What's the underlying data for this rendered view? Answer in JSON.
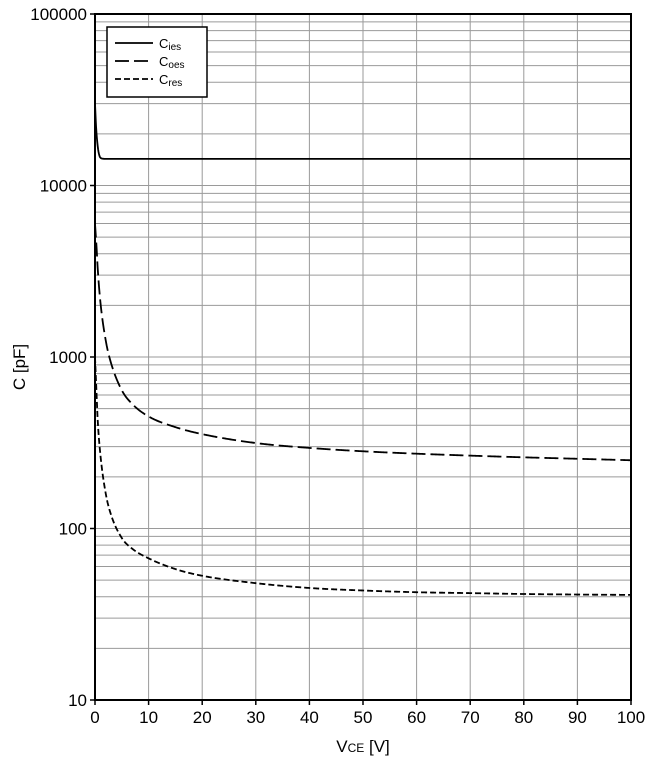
{
  "chart_data": {
    "type": "line",
    "title": "",
    "xlabel": {
      "main": "V",
      "sub": "CE",
      "unit": " [V]"
    },
    "ylabel": "C [pF]",
    "xlim": [
      0,
      100
    ],
    "ylim": [
      10,
      100000
    ],
    "yscale": "log",
    "grid": true,
    "legend_position": "top-left",
    "x_ticks": [
      0,
      10,
      20,
      30,
      40,
      50,
      60,
      70,
      80,
      90,
      100
    ],
    "y_ticks": [
      10,
      100,
      1000,
      10000,
      100000
    ],
    "series": [
      {
        "name": {
          "main": "C",
          "sub": "ies"
        },
        "style": "solid",
        "x": [
          0,
          0.2,
          0.5,
          0.8,
          1.2,
          2,
          5,
          10,
          20,
          40,
          60,
          80,
          100
        ],
        "y": [
          30000,
          22000,
          17000,
          15000,
          14400,
          14300,
          14300,
          14300,
          14300,
          14300,
          14300,
          14300,
          14300
        ]
      },
      {
        "name": {
          "main": "C",
          "sub": "oes"
        },
        "style": "long-dash",
        "x": [
          0,
          0.3,
          0.5,
          1,
          2,
          3,
          5,
          7,
          10,
          15,
          20,
          30,
          40,
          50,
          60,
          70,
          80,
          90,
          100
        ],
        "y": [
          6000,
          4300,
          3300,
          2100,
          1250,
          920,
          640,
          530,
          450,
          390,
          355,
          315,
          295,
          282,
          273,
          266,
          260,
          255,
          250
        ]
      },
      {
        "name": {
          "main": "C",
          "sub": "res"
        },
        "style": "short-dash",
        "x": [
          0,
          0.3,
          0.5,
          1,
          2,
          3,
          5,
          7,
          10,
          15,
          20,
          30,
          40,
          50,
          60,
          70,
          80,
          90,
          100
        ],
        "y": [
          1000,
          600,
          430,
          270,
          160,
          120,
          88,
          76,
          67,
          58,
          53,
          48,
          45,
          43.5,
          42.5,
          42,
          41.5,
          41.2,
          41
        ]
      }
    ]
  }
}
